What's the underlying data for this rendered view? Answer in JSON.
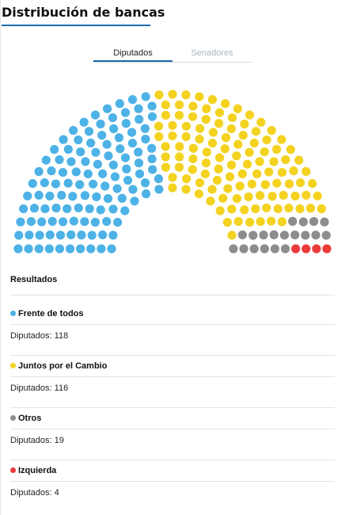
{
  "title": "Distribución de bancas",
  "tabs": [
    {
      "label": "Diputados",
      "active": true
    },
    {
      "label": "Senadores",
      "active": false
    }
  ],
  "results": {
    "title": "Resultados",
    "seats_label": "Diputados:",
    "parties": [
      {
        "name": "Frente de todos",
        "seats": 118,
        "color": "#4db2e6"
      },
      {
        "name": "Juntos por el Cambio",
        "seats": 116,
        "color": "#f4d220"
      },
      {
        "name": "Otros",
        "seats": 19,
        "color": "#8d8d8d"
      },
      {
        "name": "Izquierda",
        "seats": 4,
        "color": "#ea3b3b"
      }
    ]
  }
}
